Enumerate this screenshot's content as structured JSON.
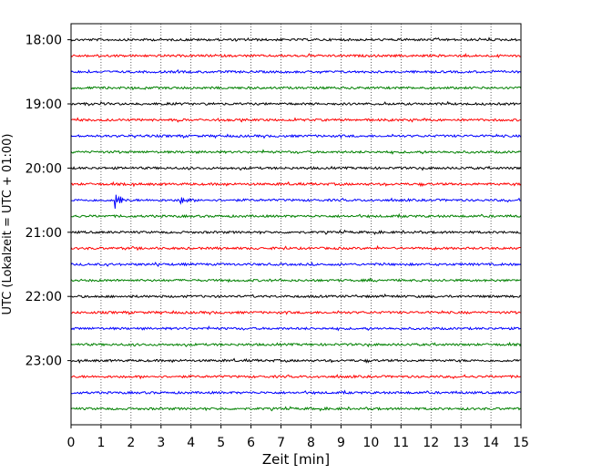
{
  "chart_data": {
    "type": "line",
    "title": "",
    "xlabel": "Zeit  [min]",
    "ylabel": "UTC (Lokalzeit = UTC + 01:00)",
    "xlim": [
      0,
      15
    ],
    "x_ticks": [
      0,
      1,
      2,
      3,
      4,
      5,
      6,
      7,
      8,
      9,
      10,
      11,
      12,
      13,
      14,
      15
    ],
    "x_tick_labels": [
      "0",
      "1",
      "2",
      "3",
      "4",
      "5",
      "6",
      "7",
      "8",
      "9",
      "10",
      "11",
      "12",
      "13",
      "14",
      "15"
    ],
    "y_tick_labels": [
      "18:00",
      "19:00",
      "20:00",
      "21:00",
      "22:00",
      "23:00"
    ],
    "y_range_start": "17:45",
    "y_range_end": "24:00",
    "trace_interval_min": 15,
    "trace_start_times": [
      "18:00",
      "18:15",
      "18:30",
      "18:45",
      "19:00",
      "19:15",
      "19:30",
      "19:45",
      "20:00",
      "20:15",
      "20:30",
      "20:45",
      "21:00",
      "21:15",
      "21:30",
      "21:45",
      "22:00",
      "22:15",
      "22:30",
      "22:45",
      "23:00",
      "23:15",
      "23:30",
      "23:45"
    ],
    "trace_colors": [
      "#000000",
      "#ff0000",
      "#0000ff",
      "#008000"
    ],
    "grid": {
      "x": "dotted",
      "y": "off"
    },
    "events": [
      {
        "trace": "20:30",
        "time_min": 1.5,
        "peak": 1.0,
        "duration_min": 0.4
      },
      {
        "trace": "20:30",
        "time_min": 3.7,
        "peak": 0.4,
        "duration_min": 0.5
      }
    ]
  }
}
